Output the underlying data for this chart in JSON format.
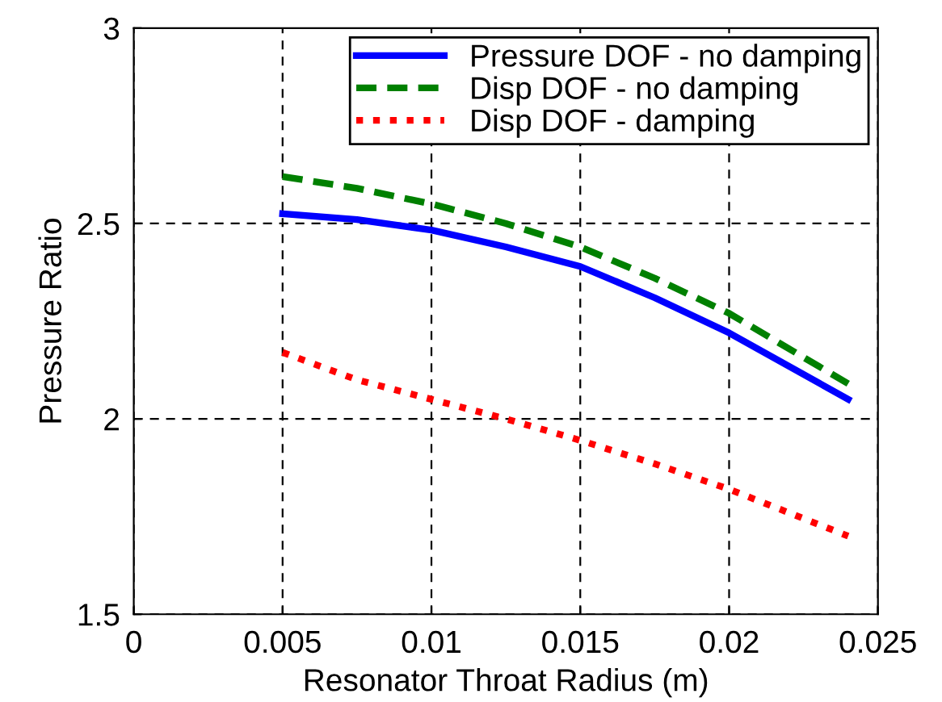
{
  "chart_data": {
    "type": "line",
    "xlabel": "Resonator Throat Radius (m)",
    "ylabel": "Pressure Ratio",
    "x": [
      0.005,
      0.0075,
      0.01,
      0.0125,
      0.015,
      0.0175,
      0.02,
      0.024
    ],
    "series": [
      {
        "name": "Pressure DOF - no damping",
        "color": "#0000ff",
        "line_style": "solid",
        "values": [
          2.525,
          2.51,
          2.483,
          2.44,
          2.39,
          2.31,
          2.22,
          2.05
        ]
      },
      {
        "name": "Disp DOF - no damping",
        "color": "#008000",
        "line_style": "dashed",
        "values": [
          2.62,
          2.59,
          2.55,
          2.5,
          2.44,
          2.36,
          2.27,
          2.09
        ]
      },
      {
        "name": "Disp DOF - damping",
        "color": "#ff0000",
        "line_style": "dotted",
        "values": [
          2.17,
          2.1,
          2.05,
          2.0,
          1.945,
          1.885,
          1.82,
          1.7
        ]
      }
    ],
    "xlim": [
      0,
      0.025
    ],
    "xticks": [
      0,
      0.005,
      0.01,
      0.015,
      0.02,
      0.025
    ],
    "ylim": [
      1.5,
      3
    ],
    "yticks": [
      1.5,
      2,
      2.5,
      3
    ],
    "grid": true,
    "legend": "top right"
  }
}
